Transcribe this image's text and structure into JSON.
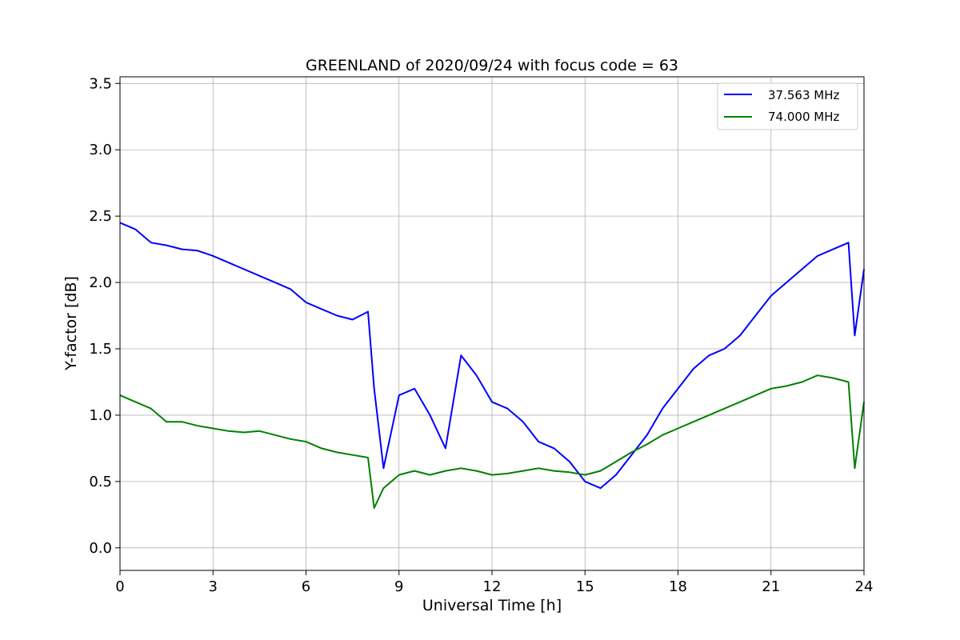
{
  "chart_data": {
    "type": "line",
    "title": "GREENLAND of 2020/09/24 with focus code = 63",
    "xlabel": "Universal Time [h]",
    "ylabel": "Y-factor [dB]",
    "xlim": [
      0,
      24
    ],
    "ylim": [
      -0.17,
      3.55
    ],
    "xticks": [
      0,
      3,
      6,
      9,
      12,
      15,
      18,
      21,
      24
    ],
    "xtick_labels": [
      "0",
      "3",
      "6",
      "9",
      "12",
      "15",
      "18",
      "21",
      "24"
    ],
    "yticks": [
      0.0,
      0.5,
      1.0,
      1.5,
      2.0,
      2.5,
      3.0,
      3.5
    ],
    "ytick_labels": [
      "0.0",
      "0.5",
      "1.0",
      "1.5",
      "2.0",
      "2.5",
      "3.0",
      "3.5"
    ],
    "grid": true,
    "legend_position": "top-right",
    "series": [
      {
        "name": "37.563 MHz",
        "color": "#0000ff",
        "x": [
          0,
          0.5,
          1,
          1.5,
          2,
          2.5,
          3,
          3.5,
          4,
          4.5,
          5,
          5.5,
          6,
          6.5,
          7,
          7.5,
          8,
          8.2,
          8.5,
          9,
          9.5,
          10,
          10.5,
          11,
          11.5,
          12,
          12.5,
          13,
          13.5,
          14,
          14.5,
          15,
          15.5,
          16,
          16.5,
          17,
          17.5,
          18,
          18.5,
          19,
          19.5,
          20,
          20.5,
          21,
          21.5,
          22,
          22.5,
          23,
          23.5,
          23.7,
          24
        ],
        "y": [
          2.45,
          2.4,
          2.3,
          2.28,
          2.25,
          2.24,
          2.2,
          2.15,
          2.1,
          2.05,
          2.0,
          1.95,
          1.85,
          1.8,
          1.75,
          1.72,
          1.78,
          1.2,
          0.6,
          1.15,
          1.2,
          1.0,
          0.75,
          1.45,
          1.3,
          1.1,
          1.05,
          0.95,
          0.8,
          0.75,
          0.65,
          0.5,
          0.45,
          0.55,
          0.7,
          0.85,
          1.05,
          1.2,
          1.35,
          1.45,
          1.5,
          1.6,
          1.75,
          1.9,
          2.0,
          2.1,
          2.2,
          2.25,
          2.3,
          1.6,
          2.1
        ]
      },
      {
        "name": "74.000 MHz",
        "color": "#008000",
        "x": [
          0,
          0.5,
          1,
          1.5,
          2,
          2.5,
          3,
          3.5,
          4,
          4.5,
          5,
          5.5,
          6,
          6.5,
          7,
          7.5,
          8,
          8.2,
          8.5,
          9,
          9.5,
          10,
          10.5,
          11,
          11.5,
          12,
          12.5,
          13,
          13.5,
          14,
          14.5,
          15,
          15.5,
          16,
          16.5,
          17,
          17.5,
          18,
          18.5,
          19,
          19.5,
          20,
          20.5,
          21,
          21.5,
          22,
          22.5,
          23,
          23.5,
          23.7,
          24
        ],
        "y": [
          1.15,
          1.1,
          1.05,
          0.95,
          0.95,
          0.92,
          0.9,
          0.88,
          0.87,
          0.88,
          0.85,
          0.82,
          0.8,
          0.75,
          0.72,
          0.7,
          0.68,
          0.3,
          0.45,
          0.55,
          0.58,
          0.55,
          0.58,
          0.6,
          0.58,
          0.55,
          0.56,
          0.58,
          0.6,
          0.58,
          0.57,
          0.55,
          0.58,
          0.65,
          0.72,
          0.78,
          0.85,
          0.9,
          0.95,
          1.0,
          1.05,
          1.1,
          1.15,
          1.2,
          1.22,
          1.25,
          1.3,
          1.28,
          1.25,
          0.6,
          1.1
        ]
      }
    ]
  }
}
